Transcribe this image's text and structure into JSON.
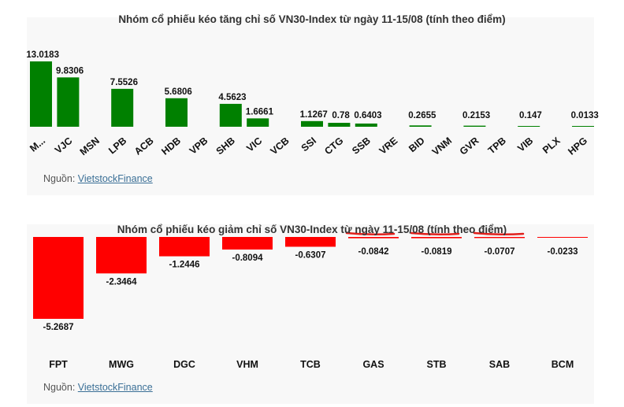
{
  "source_prefix": "Nguồn: ",
  "source_link": "VietstockFinance",
  "chart_data": [
    {
      "type": "bar",
      "title": "Nhóm cổ phiếu kéo tăng chỉ số VN30-Index từ ngày 11-15/08 (tính theo điểm)",
      "categories": [
        "M...",
        "VJC",
        "MSN",
        "LPB",
        "ACB",
        "HDB",
        "VPB",
        "SHB",
        "VIC",
        "VCB",
        "SSI",
        "CTG",
        "SSB",
        "VRE",
        "BID",
        "VNM",
        "GVR",
        "TPB",
        "VIB",
        "PLX",
        "HPG"
      ],
      "values": [
        13.0183,
        9.8306,
        null,
        7.5526,
        null,
        5.6806,
        null,
        4.5623,
        1.6661,
        null,
        1.1267,
        0.78,
        0.6403,
        null,
        0.2655,
        null,
        0.2153,
        null,
        0.147,
        null,
        0.0133
      ],
      "labels": [
        "13.0183",
        "9.8306",
        "",
        "7.5526",
        "",
        "5.6806",
        "",
        "4.5623",
        "1.6661",
        "",
        "1.1267",
        "0.78",
        "0.6403",
        "",
        "0.2655",
        "",
        "0.2153",
        "",
        "0.147",
        "",
        "0.0133"
      ],
      "color": "#008000",
      "xlabel": "",
      "ylabel": ""
    },
    {
      "type": "bar",
      "title": "Nhóm cổ phiếu kéo giảm chỉ số VN30-Index từ ngày 11-15/08 (tính theo điểm)",
      "categories": [
        "FPT",
        "MWG",
        "DGC",
        "VHM",
        "TCB",
        "GAS",
        "STB",
        "SAB",
        "BCM"
      ],
      "values": [
        -5.2687,
        -2.3464,
        -1.2446,
        -0.8094,
        -0.6307,
        -0.0842,
        -0.0819,
        -0.0707,
        -0.0233
      ],
      "labels": [
        "-5.2687",
        "-2.3464",
        "-1.2446",
        "-0.8094",
        "-0.6307",
        "-0.0842",
        "-0.0819",
        "-0.0707",
        "-0.0233"
      ],
      "color": "#ff0000",
      "xlabel": "",
      "ylabel": ""
    }
  ]
}
